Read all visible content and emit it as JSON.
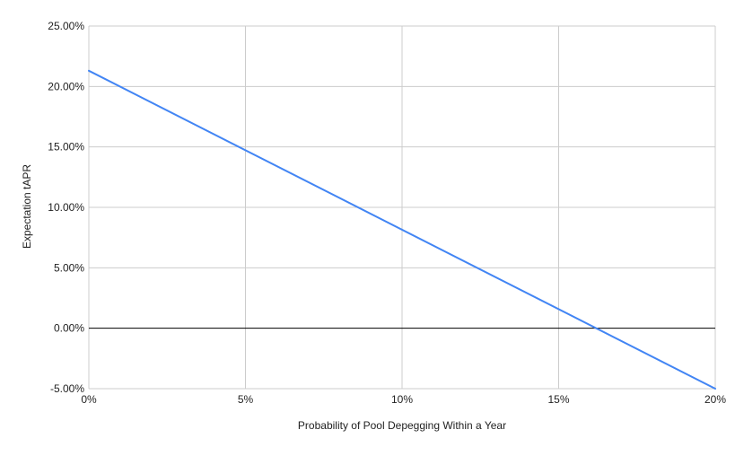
{
  "chart_data": {
    "type": "line",
    "title": "",
    "xlabel": "Probability of Pool Depegging Within a Year",
    "ylabel": "Expectation tAPR",
    "xlim": [
      0,
      20
    ],
    "ylim": [
      -5,
      25
    ],
    "x_ticks": [
      0,
      5,
      10,
      15,
      20
    ],
    "x_tick_labels": [
      "0%",
      "5%",
      "10%",
      "15%",
      "20%"
    ],
    "y_ticks": [
      -5,
      0,
      5,
      10,
      15,
      20,
      25
    ],
    "y_tick_labels": [
      "-5.00%",
      "0.00%",
      "5.00%",
      "10.00%",
      "15.00%",
      "20.00%",
      "25.00%"
    ],
    "grid": true,
    "legend": "none",
    "series": [
      {
        "color": "#4285f4",
        "x": [
          0,
          20
        ],
        "y": [
          21.3,
          -5.0
        ]
      }
    ],
    "zero_line_color": "#000000",
    "grid_color": "#cccccc"
  }
}
